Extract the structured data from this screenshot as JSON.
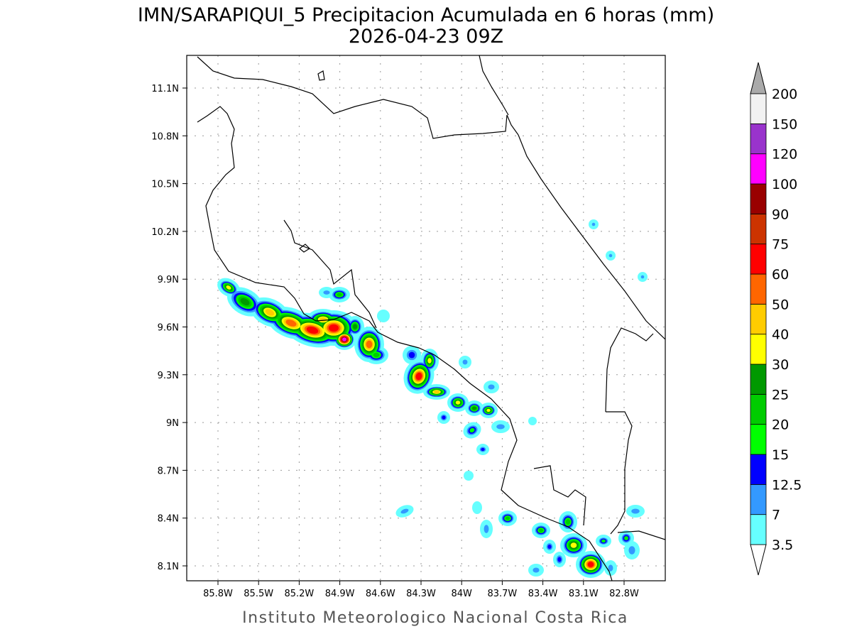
{
  "title": "IMN/SARAPIQUI_5 Precipitacion Acumulada en 6 horas (mm)",
  "subtitle": "2026-04-23 09Z",
  "footer": "Instituto Meteorologico Nacional Costa Rica",
  "map": {
    "lat_ticks": [
      "11.1N",
      "10.8N",
      "10.5N",
      "10.2N",
      "9.9N",
      "9.6N",
      "9.3N",
      "9N",
      "8.7N",
      "8.4N",
      "8.1N"
    ],
    "lon_ticks": [
      "85.8W",
      "85.5W",
      "85.2W",
      "84.9W",
      "84.6W",
      "84.3W",
      "84W",
      "83.7W",
      "83.4W",
      "83.1W",
      "82.8W"
    ]
  },
  "colorbar": {
    "labels": [
      "3.5",
      "7",
      "12.5",
      "15",
      "20",
      "25",
      "30",
      "40",
      "50",
      "60",
      "75",
      "90",
      "100",
      "120",
      "150",
      "200"
    ],
    "colors": [
      "#66ffff",
      "#3399ff",
      "#0000ff",
      "#00ff00",
      "#00cc00",
      "#009900",
      "#ffff00",
      "#ffcc00",
      "#ff6600",
      "#ff0000",
      "#cc3300",
      "#990000",
      "#ff00ff",
      "#9933cc",
      "#f2f2f2"
    ],
    "over_color": "#aaaaaa",
    "under_color": "#ffffff"
  }
}
